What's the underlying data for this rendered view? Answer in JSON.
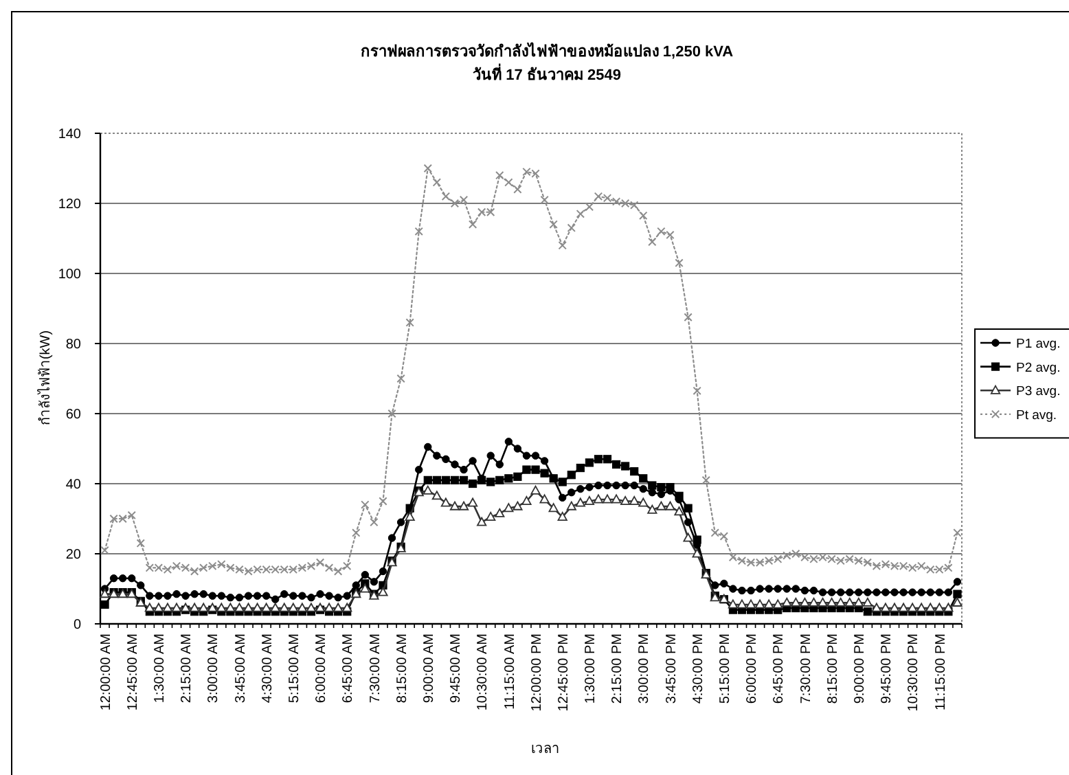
{
  "chart_data": {
    "type": "line",
    "title": "กราฟผลการตรวจวัดกำลังไฟฟ้าของหม้อแปลง 1,250 kVA",
    "subtitle": "วันที่ 17 ธันวาคม 2549",
    "xlabel": "เวลา",
    "ylabel": "กำลังไฟฟ้า(kW)",
    "categories": [
      "12:00:00 AM",
      null,
      null,
      "12:45:00 AM",
      null,
      null,
      "1:30:00 AM",
      null,
      null,
      "2:15:00 AM",
      null,
      null,
      "3:00:00 AM",
      null,
      null,
      "3:45:00 AM",
      null,
      null,
      "4:30:00 AM",
      null,
      null,
      "5:15:00 AM",
      null,
      null,
      "6:00:00 AM",
      null,
      null,
      "6:45:00 AM",
      null,
      null,
      "7:30:00 AM",
      null,
      null,
      "8:15:00 AM",
      null,
      null,
      "9:00:00 AM",
      null,
      null,
      "9:45:00 AM",
      null,
      null,
      "10:30:00 AM",
      null,
      null,
      "11:15:00 AM",
      null,
      null,
      "12:00:00 PM",
      null,
      null,
      "12:45:00 PM",
      null,
      null,
      "1:30:00 PM",
      null,
      null,
      "2:15:00 PM",
      null,
      null,
      "3:00:00 PM",
      null,
      null,
      "3:45:00 PM",
      null,
      null,
      "4:30:00 PM",
      null,
      null,
      "5:15:00 PM",
      null,
      null,
      "6:00:00 PM",
      null,
      null,
      "6:45:00 PM",
      null,
      null,
      "7:30:00 PM",
      null,
      null,
      "8:15:00 PM",
      null,
      null,
      "9:00:00 PM",
      null,
      null,
      "9:45:00 PM",
      null,
      null,
      "10:30:00 PM",
      null,
      null,
      "11:15:00 PM",
      null,
      null
    ],
    "series": [
      {
        "name": "P1 avg.",
        "color": "#000000",
        "marker": "circle",
        "line_style": "solid",
        "values": [
          10,
          13,
          13,
          13,
          11,
          8,
          8,
          8,
          8.5,
          8,
          8.5,
          8.5,
          8,
          8,
          7.5,
          7.5,
          8,
          8,
          8,
          7,
          8.5,
          8,
          8,
          7.5,
          8.5,
          8,
          7.5,
          8,
          11,
          14,
          12,
          15,
          24.5,
          29,
          33,
          44,
          50.5,
          48,
          47,
          45.5,
          44,
          46.5,
          41.5,
          48,
          45.5,
          52,
          50,
          48,
          48,
          46.5,
          41.5,
          36,
          37.5,
          38.5,
          39,
          39.5,
          39.5,
          39.5,
          39.5,
          39.5,
          38.5,
          37.5,
          37,
          38,
          35.5,
          29,
          22.5,
          14,
          11,
          11.5,
          10,
          9.5,
          9.5,
          10,
          10,
          10,
          10,
          10,
          9.5,
          9.5,
          9,
          9,
          9,
          9,
          9,
          9,
          9,
          9,
          9,
          9,
          9,
          9,
          9,
          9,
          9,
          12
        ]
      },
      {
        "name": "P2 avg.",
        "color": "#000000",
        "marker": "square",
        "line_style": "solid",
        "values": [
          5.5,
          9,
          9,
          9,
          6.5,
          3.5,
          3.5,
          3.5,
          3.5,
          4,
          3.5,
          3.5,
          4,
          3.5,
          3.5,
          3.5,
          3.5,
          3.5,
          3.5,
          3.5,
          3.5,
          3.5,
          3.5,
          3.5,
          4,
          3.5,
          3.5,
          3.5,
          9,
          11.5,
          8.5,
          11,
          18,
          22,
          33,
          38,
          41,
          41,
          41,
          41,
          41,
          40,
          41,
          40.5,
          41,
          41.5,
          42,
          44,
          44,
          43,
          41.5,
          40.5,
          42.5,
          44.5,
          46,
          47,
          47,
          45.5,
          45,
          43.5,
          41.5,
          39.5,
          39,
          39,
          36.5,
          33,
          24,
          14.5,
          8,
          7,
          4,
          4,
          4,
          4,
          4,
          4,
          4.5,
          4.5,
          4.5,
          4.5,
          4.5,
          4.5,
          4.5,
          4.5,
          4.5,
          3.5,
          3.5,
          3.5,
          3.5,
          3.5,
          3.5,
          3.5,
          3.5,
          3.5,
          3.5,
          8.5
        ]
      },
      {
        "name": "P3 avg.",
        "color": "#333333",
        "marker": "triangle",
        "line_style": "solid",
        "values": [
          8.5,
          8.5,
          8.5,
          8.5,
          6,
          4.5,
          4.5,
          4.5,
          4.5,
          4.5,
          4.5,
          4.5,
          4.5,
          4.5,
          4.5,
          4.5,
          4.5,
          4.5,
          4.5,
          4.5,
          4.5,
          4.5,
          4.5,
          4.5,
          4.5,
          4.5,
          4.5,
          4.5,
          8.5,
          10,
          8,
          9,
          17.5,
          21.5,
          30.5,
          37.5,
          38,
          36.5,
          34.5,
          33.5,
          33.5,
          34.5,
          29,
          30.5,
          31.5,
          33,
          33.5,
          35,
          38,
          35.5,
          33,
          30.5,
          33.5,
          34.5,
          35,
          35.5,
          35.5,
          35.5,
          35,
          35,
          34.5,
          32.5,
          33.5,
          33.5,
          32,
          24.5,
          20,
          14,
          7.5,
          7,
          5.5,
          5.5,
          5.5,
          5.5,
          5.5,
          5.5,
          6,
          6,
          6,
          6,
          6,
          6,
          6,
          6,
          6,
          6,
          4.5,
          4.5,
          4.5,
          4.5,
          4.5,
          4.5,
          4.5,
          4.5,
          4.5,
          6
        ]
      },
      {
        "name": "Pt avg.",
        "color": "#8c8c8c",
        "marker": "cross",
        "line_style": "dotted",
        "values": [
          21,
          30,
          30,
          31,
          23,
          16,
          16,
          15.5,
          16.5,
          16,
          15,
          16,
          16.5,
          17,
          16,
          15.5,
          15,
          15.5,
          15.5,
          15.5,
          15.5,
          15.5,
          16,
          16.5,
          17.5,
          16,
          15,
          16.5,
          26,
          34,
          29,
          35,
          60,
          70,
          86,
          112,
          130,
          126,
          122,
          120,
          121,
          114,
          117.5,
          117.5,
          128,
          126,
          124,
          129,
          128.5,
          121,
          114,
          108,
          113,
          117,
          119,
          122,
          121.5,
          120.5,
          120,
          119.5,
          116.5,
          109,
          112,
          111,
          103,
          87.5,
          66.5,
          41,
          26,
          25,
          19,
          18,
          17.5,
          17.5,
          18,
          18.5,
          19.5,
          20,
          19,
          18.5,
          19,
          18.5,
          18,
          18.5,
          18,
          17.5,
          16.5,
          17,
          16.5,
          16.5,
          16,
          16.5,
          15.5,
          15.5,
          16,
          26
        ]
      }
    ],
    "ylim": [
      0,
      140
    ],
    "yticks": [
      0,
      20,
      40,
      60,
      80,
      100,
      120,
      140
    ],
    "grid": "y",
    "legend": "right"
  }
}
